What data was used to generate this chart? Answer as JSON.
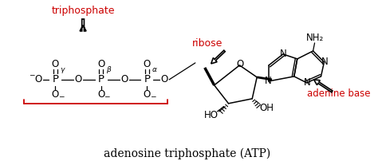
{
  "title": "adenosine triphosphate (ATP)",
  "title_color": "#000000",
  "title_fontsize": 10,
  "bg_color": "#ffffff",
  "label_triphosphate": "triphosphate",
  "label_ribose": "ribose",
  "label_adenine": "adenine base",
  "label_color": "#cc0000",
  "label_fontsize": 9,
  "structure_color": "#000000",
  "figsize": [
    4.74,
    2.02
  ],
  "dpi": 100
}
